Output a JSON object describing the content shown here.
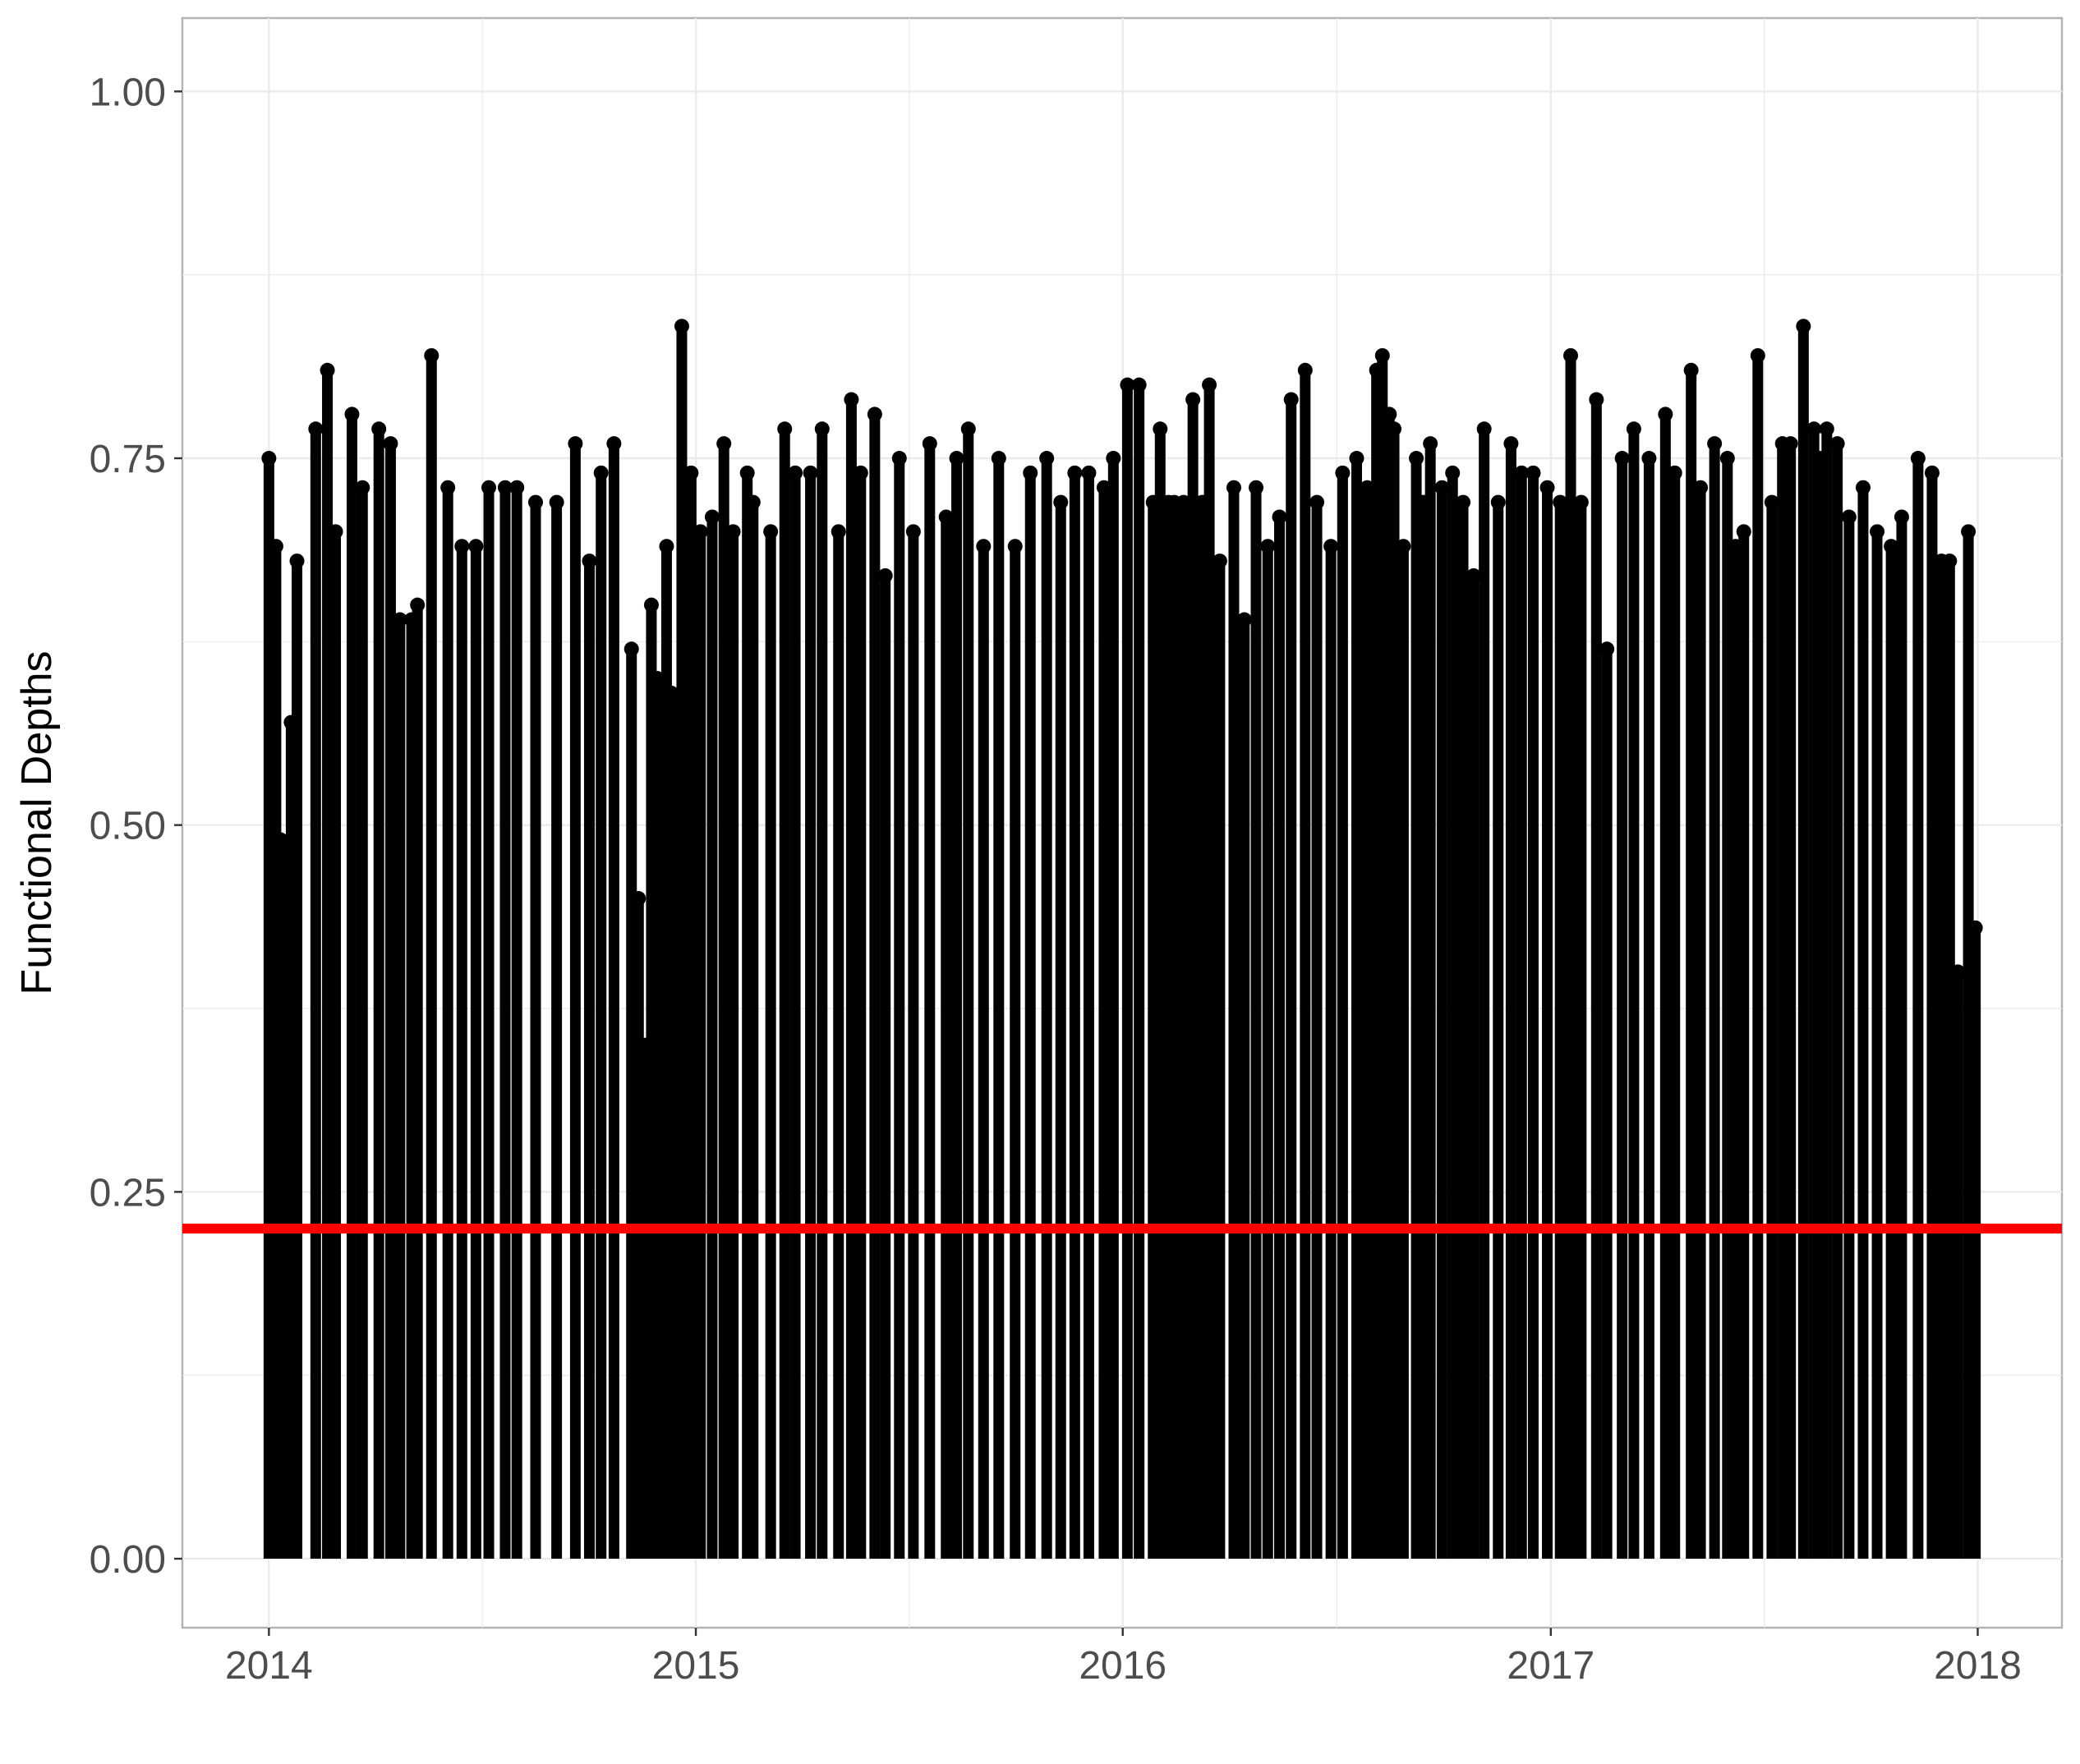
{
  "chart_data": {
    "type": "lollipop",
    "title": "",
    "xlabel": "",
    "ylabel": "Functional Depths",
    "x_axis": {
      "type": "date",
      "range": [
        "2013-10-19",
        "2018-03-14"
      ],
      "ticks": [
        "2014-01-01",
        "2015-01-01",
        "2016-01-01",
        "2017-01-01",
        "2018-01-01"
      ],
      "tick_labels": [
        "2014",
        "2015",
        "2016",
        "2017",
        "2018"
      ]
    },
    "y_axis": {
      "range": [
        -0.047,
        1.05
      ],
      "ticks": [
        0.0,
        0.25,
        0.5,
        0.75,
        1.0
      ],
      "tick_labels": [
        "0.00",
        "0.25",
        "0.50",
        "0.75",
        "1.00"
      ]
    },
    "grid": true,
    "legend": "none",
    "threshold": {
      "y": 0.225,
      "color": "#ff0000"
    },
    "stem_color": "#000000",
    "point_color": "#000000",
    "series": [
      {
        "x": [
          "2014-01-01",
          "2014-01-07",
          "2014-01-11",
          "2014-01-20",
          "2014-01-25",
          "2014-02-10",
          "2014-02-20",
          "2014-02-27",
          "2014-03-13",
          "2014-03-22",
          "2014-04-05",
          "2014-04-15",
          "2014-04-23",
          "2014-05-03",
          "2014-05-08",
          "2014-05-20",
          "2014-06-03",
          "2014-06-15",
          "2014-06-27",
          "2014-07-08",
          "2014-07-22",
          "2014-08-01",
          "2014-08-17",
          "2014-09-04",
          "2014-09-20",
          "2014-10-02",
          "2014-10-12",
          "2014-10-23",
          "2014-11-07",
          "2014-11-13",
          "2014-11-19",
          "2014-11-24",
          "2014-11-29",
          "2014-12-03",
          "2014-12-07",
          "2014-12-11",
          "2014-12-20",
          "2014-12-28",
          "2015-01-05",
          "2015-01-15",
          "2015-01-25",
          "2015-02-02",
          "2015-02-14",
          "2015-02-19",
          "2015-03-06",
          "2015-03-18",
          "2015-03-27",
          "2015-04-09",
          "2015-04-19",
          "2015-05-03",
          "2015-05-14",
          "2015-05-22",
          "2015-06-03",
          "2015-06-12",
          "2015-06-24",
          "2015-07-06",
          "2015-07-20",
          "2015-08-03",
          "2015-08-12",
          "2015-08-22",
          "2015-09-04",
          "2015-09-17",
          "2015-10-01",
          "2015-10-14",
          "2015-10-28",
          "2015-11-09",
          "2015-11-21",
          "2015-12-03",
          "2015-12-16",
          "2015-12-24",
          "2016-01-05",
          "2016-01-15",
          "2016-01-27",
          "2016-02-02",
          "2016-02-09",
          "2016-02-14",
          "2016-02-22",
          "2016-03-01",
          "2016-03-09",
          "2016-03-15",
          "2016-03-24",
          "2016-04-05",
          "2016-04-14",
          "2016-04-24",
          "2016-05-04",
          "2016-05-14",
          "2016-05-24",
          "2016-06-05",
          "2016-06-15",
          "2016-06-27",
          "2016-07-07",
          "2016-07-19",
          "2016-07-28",
          "2016-08-05",
          "2016-08-10",
          "2016-08-16",
          "2016-08-20",
          "2016-08-28",
          "2016-09-08",
          "2016-09-14",
          "2016-09-20",
          "2016-09-30",
          "2016-10-09",
          "2016-10-18",
          "2016-10-27",
          "2016-11-05",
          "2016-11-17",
          "2016-11-28",
          "2016-12-07",
          "2016-12-17",
          "2016-12-29",
          "2017-01-09",
          "2017-01-18",
          "2017-01-27",
          "2017-02-09",
          "2017-02-18",
          "2017-03-03",
          "2017-03-13",
          "2017-03-26",
          "2017-04-09",
          "2017-04-17",
          "2017-05-01",
          "2017-05-09",
          "2017-05-21",
          "2017-06-01",
          "2017-06-08",
          "2017-06-15",
          "2017-06-27",
          "2017-07-09",
          "2017-07-18",
          "2017-07-25",
          "2017-08-05",
          "2017-08-14",
          "2017-08-19",
          "2017-08-25",
          "2017-09-03",
          "2017-09-13",
          "2017-09-25",
          "2017-10-07",
          "2017-10-19",
          "2017-10-28",
          "2017-11-11",
          "2017-11-23",
          "2017-12-01",
          "2017-12-08",
          "2017-12-15",
          "2017-12-24",
          "2017-12-30"
        ],
        "y": [
          0.75,
          0.69,
          0.49,
          0.57,
          0.68,
          0.77,
          0.81,
          0.7,
          0.78,
          0.73,
          0.77,
          0.76,
          0.64,
          0.64,
          0.65,
          0.82,
          0.73,
          0.69,
          0.69,
          0.73,
          0.73,
          0.73,
          0.72,
          0.72,
          0.76,
          0.68,
          0.74,
          0.76,
          0.62,
          0.45,
          0.35,
          0.65,
          0.6,
          0.26,
          0.69,
          0.59,
          0.84,
          0.74,
          0.7,
          0.71,
          0.76,
          0.7,
          0.74,
          0.72,
          0.7,
          0.77,
          0.74,
          0.74,
          0.77,
          0.7,
          0.79,
          0.74,
          0.78,
          0.67,
          0.75,
          0.7,
          0.76,
          0.71,
          0.75,
          0.77,
          0.69,
          0.75,
          0.69,
          0.74,
          0.75,
          0.72,
          0.74,
          0.74,
          0.73,
          0.75,
          0.8,
          0.8,
          0.72,
          0.77,
          0.72,
          0.72,
          0.72,
          0.79,
          0.72,
          0.8,
          0.68,
          0.73,
          0.64,
          0.73,
          0.69,
          0.71,
          0.79,
          0.81,
          0.72,
          0.69,
          0.74,
          0.75,
          0.73,
          0.81,
          0.82,
          0.78,
          0.77,
          0.69,
          0.75,
          0.72,
          0.76,
          0.73,
          0.74,
          0.72,
          0.67,
          0.77,
          0.72,
          0.76,
          0.74,
          0.74,
          0.73,
          0.72,
          0.82,
          0.72,
          0.79,
          0.62,
          0.75,
          0.77,
          0.75,
          0.78,
          0.74,
          0.81,
          0.73,
          0.76,
          0.75,
          0.69,
          0.7,
          0.82,
          0.72,
          0.76,
          0.76,
          0.84,
          0.77,
          0.75,
          0.77,
          0.76,
          0.71,
          0.73,
          0.7,
          0.69,
          0.71,
          0.75,
          0.74,
          0.68,
          0.68,
          0.4,
          0.7,
          0.43
        ]
      }
    ]
  }
}
